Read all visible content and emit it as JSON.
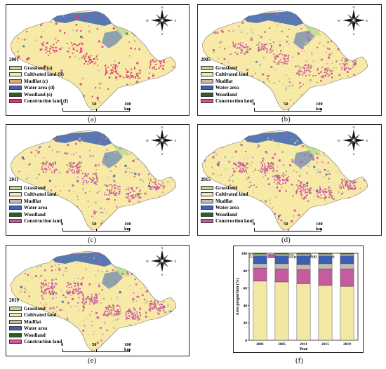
{
  "panels": [
    {
      "id": "a",
      "year": "2001",
      "caption": "(a)",
      "scale": {
        "ticks": [
          "0",
          "50",
          "100 km"
        ]
      },
      "legend": [
        "Grassland (a)",
        "Cultivated land (b)",
        "Mudflat (c)",
        "Water area (d)",
        "Woodland (e)",
        "Construction land (f)"
      ]
    },
    {
      "id": "b",
      "year": "2005",
      "caption": "(b)",
      "scale": {
        "ticks": [
          "0",
          "50",
          "100 km"
        ]
      },
      "legend": [
        "Grassland",
        "Cultivated land",
        "Mudflat",
        "Water area",
        "Woodland",
        "Construction land"
      ]
    },
    {
      "id": "c",
      "year": "2011",
      "caption": "(c)",
      "scale": {
        "ticks": [
          "0",
          "50",
          "100 km"
        ]
      },
      "legend": [
        "Grassland",
        "Cultivated land",
        "Mudflat",
        "Water area",
        "Woodland",
        "Construction land"
      ]
    },
    {
      "id": "d",
      "year": "2015",
      "caption": "(d)",
      "scale": {
        "ticks": [
          "0",
          "50",
          "100 km"
        ]
      },
      "legend": [
        "Grassland",
        "Cultivated land",
        "Mudflat",
        "Water area",
        "Woodland",
        "Construction land"
      ]
    },
    {
      "id": "e",
      "year": "2019",
      "caption": "(e)",
      "scale": {
        "ticks": [
          "0",
          "50",
          "100 km"
        ]
      },
      "legend": [
        "Grassland",
        "Cultivated land",
        "Mudflat",
        "Water area",
        "Woodland",
        "Construction land"
      ]
    }
  ],
  "compass": {
    "n": "N",
    "s": "S",
    "e": "E",
    "w": "W"
  },
  "colors": {
    "grassland": "#b9db8e",
    "cultivated": "#f7eaa6",
    "mudflat": "#c3bcae",
    "water": "#3c64b4",
    "woodland": "#2f5e22",
    "construction": "#c95a9c",
    "construction_a": "#e3337a",
    "mudflat_a": "#d6a98b"
  },
  "chart_caption": "(f)",
  "chart_data": {
    "type": "bar",
    "stacked": true,
    "categories": [
      "2001",
      "2005",
      "2011",
      "2015",
      "2019"
    ],
    "xlabel": "Year",
    "ylabel": "Area proportion (%)",
    "ylim": [
      0,
      100
    ],
    "yticks": [
      "0",
      "20",
      "40",
      "60",
      "80",
      "100"
    ],
    "legend_labels": [
      "(a)",
      "(b)",
      "(c)",
      "(d)",
      "(e)",
      "(f)"
    ],
    "series": [
      {
        "name": "(a)",
        "values": [
          68,
          67,
          65,
          63,
          62
        ]
      },
      {
        "name": "(b)",
        "values": [
          15,
          15,
          16,
          19,
          20
        ]
      },
      {
        "name": "(c)",
        "values": [
          5,
          6,
          6,
          6,
          6
        ]
      },
      {
        "name": "(d)",
        "values": [
          9,
          9,
          10,
          9,
          9
        ]
      },
      {
        "name": "(e)",
        "values": [
          2,
          2,
          2,
          2,
          2
        ]
      },
      {
        "name": "(f)",
        "values": [
          1,
          1,
          1,
          1,
          1
        ]
      }
    ]
  },
  "chart_series_colors": [
    "#f1e8a3",
    "#c45c9e",
    "#c1bcae",
    "#3d5fb1",
    "#b9dc91",
    "#2f5e22"
  ]
}
